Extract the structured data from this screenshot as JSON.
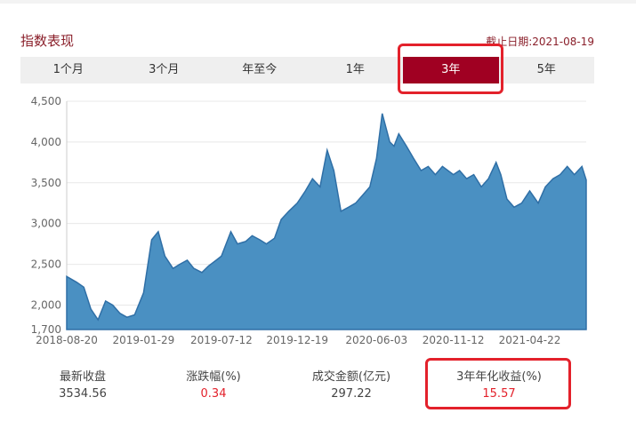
{
  "header": {
    "title": "指数表现",
    "as_of": "截止日期:2021-08-19"
  },
  "tabs": [
    {
      "label": "1个月",
      "active": false
    },
    {
      "label": "3个月",
      "active": false
    },
    {
      "label": "年至今",
      "active": false
    },
    {
      "label": "1年",
      "active": false
    },
    {
      "label": "3年",
      "active": true
    },
    {
      "label": "5年",
      "active": false
    }
  ],
  "colors": {
    "accent": "#a00022",
    "highlight": "#e3212b",
    "area_fill": "#4a90c2",
    "area_line": "#2f6fa6"
  },
  "stats": [
    {
      "label": "最新收盘",
      "value": "3534.56",
      "red": false
    },
    {
      "label": "涨跌幅(%)",
      "value": "0.34",
      "red": true
    },
    {
      "label": "成交金额(亿元)",
      "value": "297.22",
      "red": false
    },
    {
      "label": "3年年化收益(%)",
      "value": "15.57",
      "red": true
    }
  ],
  "chart_data": {
    "type": "area",
    "title": "",
    "xlabel": "",
    "ylabel": "",
    "ylim": [
      1700,
      4500
    ],
    "y_ticks": [
      "1,700",
      "2,000",
      "2,500",
      "3,000",
      "3,500",
      "4,000",
      "4,500"
    ],
    "y_tick_values": [
      1700,
      2000,
      2500,
      3000,
      3500,
      4000,
      4500
    ],
    "x_ticks": [
      "2018-08-20",
      "2019-01-29",
      "2019-07-12",
      "2019-12-19",
      "2020-06-03",
      "2020-11-12",
      "2021-04-22"
    ],
    "grid": true,
    "series": [
      {
        "x": [
          "2018-08-20",
          "2018-09-10",
          "2018-09-25",
          "2018-10-10",
          "2018-10-25",
          "2018-11-10",
          "2018-11-25",
          "2018-12-10",
          "2018-12-25",
          "2019-01-10",
          "2019-01-29",
          "2019-02-15",
          "2019-03-01",
          "2019-03-15",
          "2019-04-01",
          "2019-04-15",
          "2019-05-01",
          "2019-05-15",
          "2019-06-01",
          "2019-06-15",
          "2019-07-01",
          "2019-07-12",
          "2019-08-01",
          "2019-08-15",
          "2019-09-01",
          "2019-09-15",
          "2019-10-01",
          "2019-10-15",
          "2019-11-01",
          "2019-11-15",
          "2019-12-01",
          "2019-12-19",
          "2020-01-05",
          "2020-01-20",
          "2020-02-05",
          "2020-02-20",
          "2020-03-05",
          "2020-03-20",
          "2020-04-05",
          "2020-04-20",
          "2020-05-05",
          "2020-05-20",
          "2020-06-03",
          "2020-06-15",
          "2020-07-01",
          "2020-07-10",
          "2020-07-20",
          "2020-08-05",
          "2020-08-20",
          "2020-09-05",
          "2020-09-20",
          "2020-10-05",
          "2020-10-20",
          "2020-11-12",
          "2020-11-25",
          "2020-12-10",
          "2020-12-25",
          "2021-01-10",
          "2021-01-25",
          "2021-02-10",
          "2021-02-20",
          "2021-03-05",
          "2021-03-20",
          "2021-04-05",
          "2021-04-22",
          "2021-05-10",
          "2021-05-25",
          "2021-06-10",
          "2021-06-25",
          "2021-07-10",
          "2021-07-25",
          "2021-08-10",
          "2021-08-19"
        ],
        "values": [
          2350,
          2280,
          2220,
          1950,
          1820,
          2050,
          2000,
          1900,
          1850,
          1880,
          2150,
          2800,
          2900,
          2600,
          2450,
          2500,
          2550,
          2450,
          2400,
          2480,
          2550,
          2600,
          2900,
          2750,
          2780,
          2850,
          2800,
          2750,
          2820,
          3050,
          3150,
          3250,
          3400,
          3550,
          3450,
          3900,
          3650,
          3150,
          3200,
          3250,
          3350,
          3450,
          3800,
          4350,
          4000,
          3950,
          4100,
          3950,
          3800,
          3650,
          3700,
          3600,
          3700,
          3600,
          3650,
          3550,
          3600,
          3450,
          3550,
          3750,
          3600,
          3300,
          3200,
          3250,
          3400,
          3250,
          3450,
          3550,
          3600,
          3700,
          3600,
          3700,
          3534.56
        ]
      }
    ]
  }
}
